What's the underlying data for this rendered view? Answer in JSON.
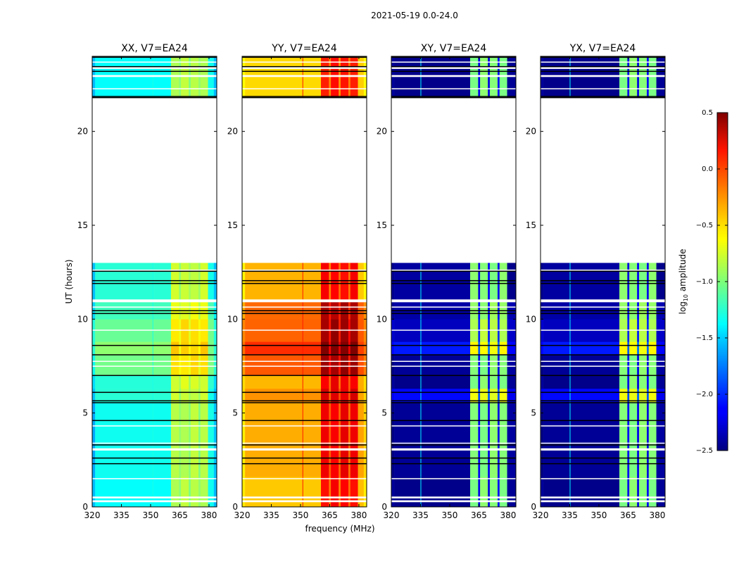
{
  "chart_data": {
    "type": "heatmap",
    "title": "2021-05-19 0.0-24.0",
    "xlabel": "frequency (MHz)",
    "ylabel": "UT (hours)",
    "xlim": [
      320,
      384
    ],
    "ylim": [
      0,
      24
    ],
    "xticks": [
      "320",
      "335",
      "350",
      "365",
      "380"
    ],
    "xtick_values": [
      320,
      335,
      350,
      365,
      380
    ],
    "yticks": [
      "0",
      "5",
      "10",
      "15",
      "20"
    ],
    "ytick_values": [
      0,
      5,
      10,
      15,
      20
    ],
    "colorbar": {
      "label": "log10 amplitude",
      "label_main": "log",
      "label_sub": "10",
      "label_rest": " amplitude",
      "range": [
        -2.5,
        0.5
      ],
      "ticks": [
        "0.5",
        "0.0",
        "−0.5",
        "−1.0",
        "−1.5",
        "−2.0",
        "−2.5"
      ],
      "tick_values": [
        0.5,
        0.0,
        -0.5,
        -1.0,
        -1.5,
        -2.0,
        -2.5
      ],
      "colormap": "jet"
    },
    "panels": [
      {
        "title": "XX, V7=EA24",
        "levels": {
          "edge": -1.6,
          "base": -1.35,
          "band": -0.85,
          "gap": -1.0
        },
        "line": {
          "freq": 351,
          "value": -1.3
        }
      },
      {
        "title": "YY, V7=EA24",
        "levels": {
          "edge": -0.6,
          "base": -0.45,
          "band": 0.1,
          "gap": -0.25
        },
        "line": {
          "freq": 351,
          "value": 0.05
        }
      },
      {
        "title": "XY, V7=EA24",
        "levels": {
          "edge": -2.45,
          "base": -2.45,
          "band": -1.0,
          "gap": -2.2
        },
        "line": {
          "freq": 335,
          "value": -1.4
        }
      },
      {
        "title": "YX, V7=EA24",
        "levels": {
          "edge": -2.45,
          "base": -2.45,
          "band": -1.0,
          "gap": -2.2
        },
        "line": {
          "freq": 335,
          "value": -1.4
        }
      }
    ],
    "freq_columns": [
      [
        320,
        321.5,
        "edge"
      ],
      [
        321.5,
        360.5,
        "base"
      ],
      [
        360.5,
        364.6,
        "band"
      ],
      [
        364.6,
        365.6,
        "gap"
      ],
      [
        365.6,
        369.6,
        "band"
      ],
      [
        369.6,
        370.6,
        "gap"
      ],
      [
        370.6,
        374.6,
        "band"
      ],
      [
        374.6,
        375.6,
        "gap"
      ],
      [
        375.6,
        379.5,
        "band"
      ],
      [
        379.5,
        382.5,
        "base"
      ],
      [
        382.5,
        384,
        "edge"
      ]
    ],
    "time_segments": [
      {
        "hours": [
          0,
          1.6
        ],
        "offsets": [
          0,
          0,
          0,
          0
        ]
      },
      {
        "hours": [
          1.6,
          5.6
        ],
        "offsets": [
          0,
          0.05,
          0,
          0
        ]
      },
      {
        "hours": [
          5.6,
          6.3
        ],
        "offsets": [
          0.05,
          0.1,
          0.3,
          0.3
        ]
      },
      {
        "hours": [
          6.3,
          7.0
        ],
        "offsets": [
          0.1,
          0.05,
          0,
          0
        ]
      },
      {
        "hours": [
          7.0,
          8.1
        ],
        "offsets": [
          0.3,
          0.3,
          0,
          0
        ]
      },
      {
        "hours": [
          8.1,
          8.8
        ],
        "offsets": [
          0.35,
          0.4,
          0.35,
          0.35
        ]
      },
      {
        "hours": [
          8.8,
          10.0
        ],
        "offsets": [
          0.3,
          0.3,
          0.15,
          0.15
        ]
      },
      {
        "hours": [
          10.0,
          11.0
        ],
        "offsets": [
          0.15,
          0.25,
          0.05,
          0.05
        ]
      },
      {
        "hours": [
          11.0,
          13.0
        ],
        "offsets": [
          0.05,
          0,
          0,
          0
        ]
      },
      {
        "hours": [
          21.8,
          24.0
        ],
        "offsets": [
          0,
          -0.05,
          0,
          0
        ]
      }
    ],
    "flagged_hours_white": [
      [
        0.25,
        0.35
      ],
      [
        0.45,
        0.55
      ],
      [
        1.48,
        1.53
      ],
      [
        3.0,
        3.12
      ],
      [
        3.38,
        3.42
      ],
      [
        4.3,
        4.34
      ],
      [
        7.48,
        7.52
      ],
      [
        7.74,
        7.78
      ],
      [
        9.4,
        9.44
      ],
      [
        10.62,
        10.67
      ],
      [
        10.9,
        11.05
      ],
      [
        12.6,
        12.64
      ],
      [
        13.0,
        21.8
      ],
      [
        22.25,
        22.3
      ],
      [
        22.9,
        23.0
      ],
      [
        23.33,
        23.42
      ],
      [
        23.68,
        23.72
      ]
    ],
    "flagged_hours_black": [
      2.3,
      2.6,
      3.3,
      4.6,
      5.55,
      5.65,
      6.1,
      7.0,
      8.1,
      8.6,
      10.3,
      10.45,
      11.9,
      12.05,
      12.55,
      21.8,
      21.86,
      23.2,
      23.45,
      23.95
    ]
  }
}
